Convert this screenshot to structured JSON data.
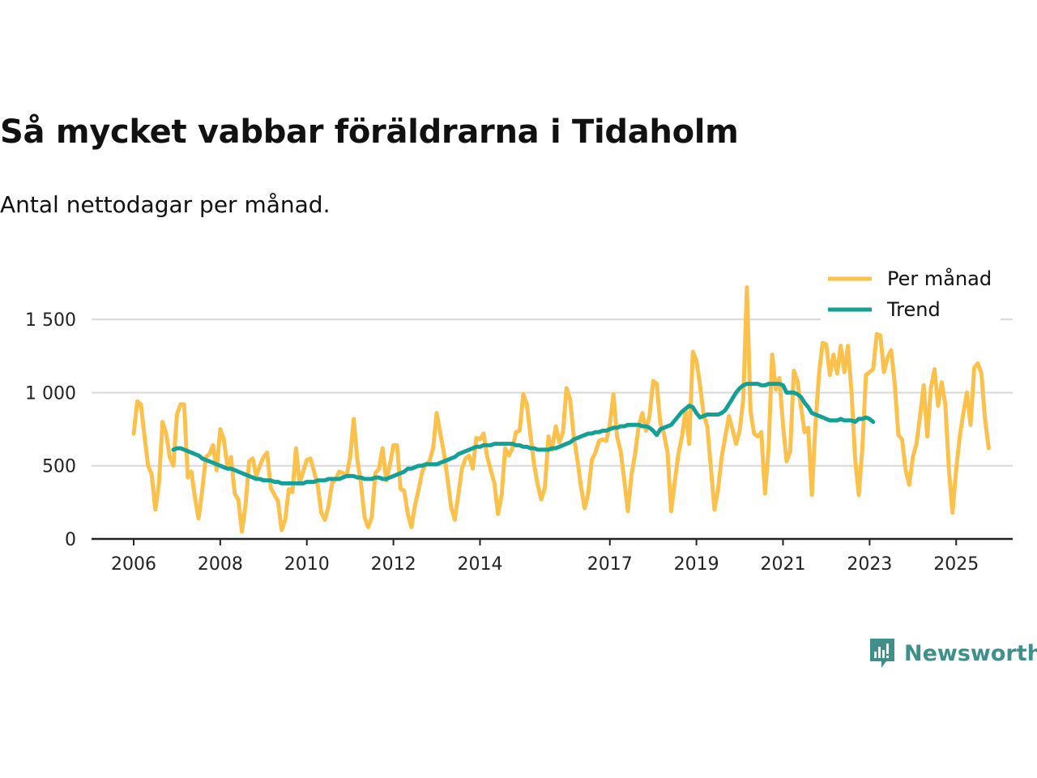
{
  "chart_data": {
    "type": "line",
    "title": "Så mycket vabbar föräldrarna i Tidaholm",
    "subtitle": "Antal nettodagar per månad.",
    "xlabel": "",
    "ylabel": "",
    "xlim": [
      2006.0,
      2025.37
    ],
    "ylim": [
      0,
      1800
    ],
    "grid": true,
    "legend_position": "top-right",
    "x_ticks": [
      2006,
      2008,
      2010,
      2012,
      2014,
      2017,
      2019,
      2021,
      2023,
      2025
    ],
    "x_tick_labels": [
      "2006",
      "2008",
      "2010",
      "2012",
      "2014",
      "2017",
      "2019",
      "2021",
      "2023",
      "2025"
    ],
    "y_ticks": [
      0,
      500,
      1000,
      1500
    ],
    "y_tick_labels": [
      "0",
      "500",
      "1 000",
      "1 500"
    ],
    "series": [
      {
        "name": "Per månad",
        "color": "#fbc14b",
        "x_start": 2006.0,
        "x_step": 0.08333,
        "values": [
          720,
          940,
          920,
          700,
          500,
          440,
          200,
          380,
          800,
          720,
          560,
          500,
          850,
          920,
          920,
          420,
          460,
          280,
          140,
          330,
          560,
          580,
          640,
          470,
          750,
          680,
          490,
          560,
          310,
          270,
          50,
          230,
          530,
          550,
          430,
          500,
          560,
          590,
          350,
          300,
          260,
          60,
          130,
          340,
          320,
          620,
          380,
          460,
          540,
          550,
          460,
          370,
          180,
          130,
          220,
          380,
          410,
          460,
          450,
          430,
          560,
          820,
          540,
          380,
          150,
          80,
          150,
          450,
          480,
          620,
          400,
          500,
          640,
          640,
          340,
          330,
          170,
          80,
          230,
          340,
          460,
          510,
          530,
          620,
          860,
          720,
          590,
          410,
          220,
          130,
          300,
          480,
          550,
          570,
          480,
          690,
          680,
          720,
          560,
          470,
          380,
          170,
          300,
          620,
          570,
          620,
          730,
          740,
          990,
          920,
          710,
          510,
          370,
          270,
          350,
          700,
          610,
          770,
          660,
          730,
          1030,
          950,
          700,
          540,
          360,
          210,
          310,
          540,
          590,
          670,
          680,
          670,
          780,
          990,
          700,
          600,
          400,
          190,
          440,
          580,
          770,
          860,
          740,
          840,
          1080,
          1060,
          790,
          720,
          590,
          190,
          390,
          580,
          700,
          880,
          650,
          1280,
          1220,
          1050,
          850,
          770,
          490,
          200,
          340,
          560,
          700,
          840,
          750,
          650,
          740,
          960,
          1720,
          870,
          720,
          700,
          730,
          310,
          620,
          1260,
          1020,
          1100,
          780,
          530,
          600,
          1150,
          1080,
          900,
          730,
          760,
          300,
          780,
          1130,
          1340,
          1330,
          1120,
          1260,
          1130,
          1320,
          1140,
          1320,
          1000,
          550,
          300,
          620,
          1120,
          1140,
          1160,
          1400,
          1390,
          1140,
          1240,
          1290,
          1050,
          710,
          680,
          470,
          370,
          560,
          650,
          840,
          1050,
          700,
          1030,
          1160,
          910,
          1070,
          920,
          470,
          180,
          470,
          700,
          860,
          1000,
          780,
          1170,
          1200,
          1130,
          820,
          620
        ]
      },
      {
        "name": "Trend",
        "color": "#14a096",
        "x_start": 2006.917,
        "x_step": 0.08333,
        "values": [
          610,
          620,
          620,
          610,
          600,
          590,
          580,
          570,
          550,
          540,
          530,
          520,
          510,
          500,
          490,
          480,
          480,
          470,
          460,
          450,
          440,
          430,
          420,
          410,
          410,
          400,
          400,
          400,
          390,
          390,
          380,
          380,
          380,
          380,
          380,
          380,
          380,
          390,
          390,
          390,
          400,
          400,
          400,
          410,
          410,
          410,
          410,
          420,
          430,
          430,
          430,
          420,
          420,
          410,
          410,
          410,
          420,
          420,
          410,
          410,
          420,
          430,
          440,
          450,
          460,
          480,
          480,
          490,
          500,
          500,
          510,
          510,
          510,
          510,
          520,
          530,
          540,
          550,
          560,
          580,
          590,
          600,
          610,
          620,
          630,
          630,
          640,
          640,
          640,
          650,
          650,
          650,
          650,
          650,
          650,
          640,
          640,
          630,
          630,
          620,
          620,
          610,
          610,
          610,
          610,
          620,
          620,
          630,
          640,
          650,
          660,
          680,
          690,
          700,
          710,
          720,
          720,
          730,
          730,
          740,
          740,
          750,
          760,
          760,
          770,
          770,
          780,
          780,
          780,
          780,
          770,
          770,
          760,
          740,
          710,
          750,
          760,
          770,
          780,
          810,
          840,
          870,
          890,
          910,
          900,
          860,
          830,
          840,
          850,
          850,
          850,
          850,
          860,
          880,
          920,
          960,
          1000,
          1030,
          1050,
          1060,
          1060,
          1060,
          1060,
          1050,
          1050,
          1060,
          1060,
          1060,
          1060,
          1050,
          1000,
          1000,
          1000,
          990,
          970,
          930,
          900,
          860,
          850,
          840,
          830,
          820,
          810,
          810,
          810,
          820,
          810,
          810,
          810,
          800,
          820,
          820,
          830,
          820,
          800
        ]
      }
    ]
  },
  "brand": {
    "name": "Newsworthy",
    "color": "#3f8f8a",
    "icon": "newsworthy-logo-icon"
  }
}
